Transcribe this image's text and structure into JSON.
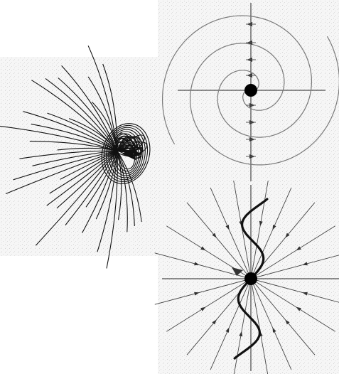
{
  "figure": {
    "panels": [
      {
        "id": "spiral-node-field",
        "shape": "spiral"
      },
      {
        "id": "tangled-trajectories",
        "shape": "tangle"
      },
      {
        "id": "radial-field-with-spiral",
        "shape": "radial"
      }
    ],
    "colors": {
      "ink": "#111111",
      "spiral": "#7a7a7a",
      "background": "#f4f4f4"
    }
  }
}
